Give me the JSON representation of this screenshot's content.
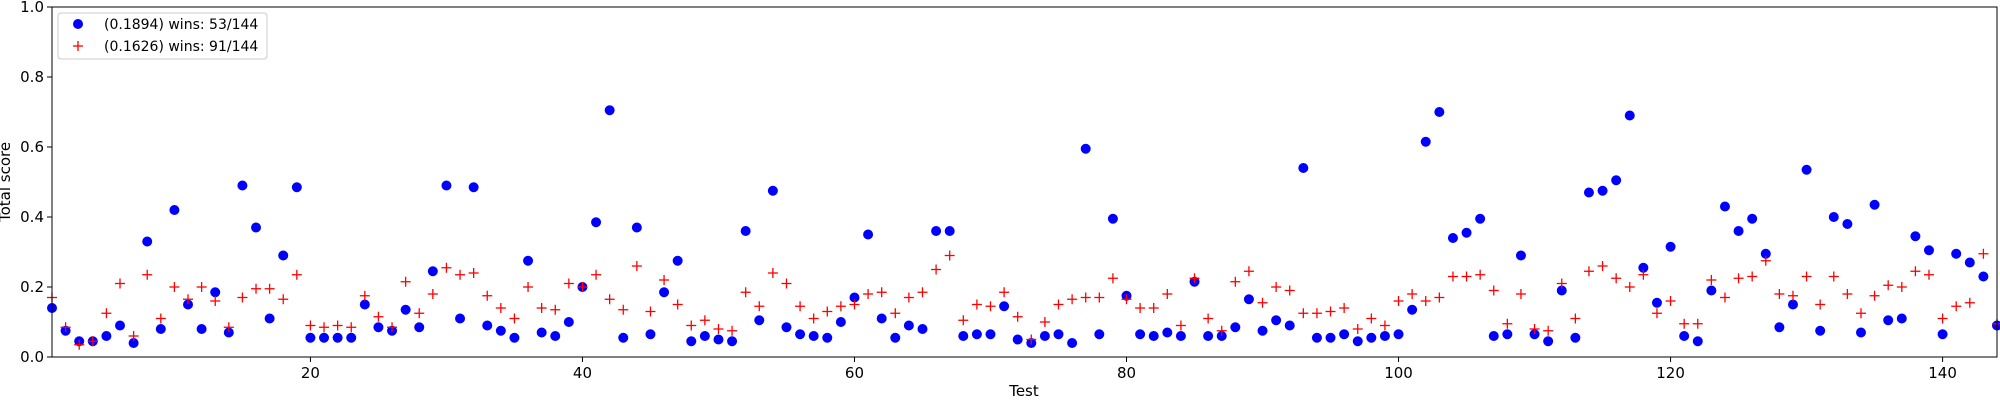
{
  "chart_data": {
    "type": "scatter",
    "title": "",
    "xlabel": "Test",
    "ylabel": "Total score",
    "xlim": [
      1,
      144
    ],
    "ylim": [
      0,
      1.0
    ],
    "xticks": [
      20,
      40,
      60,
      80,
      100,
      120,
      140
    ],
    "yticks": [
      0.0,
      0.2,
      0.4,
      0.6,
      0.8,
      1.0
    ],
    "ytick_labels": [
      "0.0",
      "0.2",
      "0.4",
      "0.6",
      "0.8",
      "1.0"
    ],
    "grid": false,
    "legend_position": "top-left",
    "x": [
      1,
      2,
      3,
      4,
      5,
      6,
      7,
      8,
      9,
      10,
      11,
      12,
      13,
      14,
      15,
      16,
      17,
      18,
      19,
      20,
      21,
      22,
      23,
      24,
      25,
      26,
      27,
      28,
      29,
      30,
      31,
      32,
      33,
      34,
      35,
      36,
      37,
      38,
      39,
      40,
      41,
      42,
      43,
      44,
      45,
      46,
      47,
      48,
      49,
      50,
      51,
      52,
      53,
      54,
      55,
      56,
      57,
      58,
      59,
      60,
      61,
      62,
      63,
      64,
      65,
      66,
      67,
      68,
      69,
      70,
      71,
      72,
      73,
      74,
      75,
      76,
      77,
      78,
      79,
      80,
      81,
      82,
      83,
      84,
      85,
      86,
      87,
      88,
      89,
      90,
      91,
      92,
      93,
      94,
      95,
      96,
      97,
      98,
      99,
      100,
      101,
      102,
      103,
      104,
      105,
      106,
      107,
      108,
      109,
      110,
      111,
      112,
      113,
      114,
      115,
      116,
      117,
      118,
      119,
      120,
      121,
      122,
      123,
      124,
      125,
      126,
      127,
      128,
      129,
      130,
      131,
      132,
      133,
      134,
      135,
      136,
      137,
      138,
      139,
      140,
      141,
      142,
      143,
      144
    ],
    "series": [
      {
        "name": "(0.1894) wins: 53/144",
        "color": "#0000ff",
        "marker": "circle",
        "values": [
          0.14,
          0.075,
          0.045,
          0.045,
          0.06,
          0.09,
          0.04,
          0.33,
          0.08,
          0.42,
          0.15,
          0.08,
          0.185,
          0.07,
          0.49,
          0.37,
          0.11,
          0.29,
          0.485,
          0.055,
          0.055,
          0.055,
          0.055,
          0.15,
          0.085,
          0.075,
          0.135,
          0.085,
          0.245,
          0.49,
          0.11,
          0.485,
          0.09,
          0.075,
          0.055,
          0.275,
          0.07,
          0.06,
          0.1,
          0.2,
          0.385,
          0.705,
          0.055,
          0.37,
          0.065,
          0.185,
          0.275,
          0.045,
          0.06,
          0.05,
          0.045,
          0.36,
          0.105,
          0.475,
          0.085,
          0.065,
          0.06,
          0.055,
          0.1,
          0.17,
          0.35,
          0.11,
          0.055,
          0.09,
          0.08,
          0.36,
          0.36,
          0.06,
          0.065,
          0.065,
          0.145,
          0.05,
          0.04,
          0.06,
          0.065,
          0.04,
          0.595,
          0.065,
          0.395,
          0.175,
          0.065,
          0.06,
          0.07,
          0.06,
          0.215,
          0.06,
          0.06,
          0.085,
          0.165,
          0.075,
          0.105,
          0.09,
          0.54,
          0.055,
          0.055,
          0.065,
          0.045,
          0.055,
          0.06,
          0.065,
          0.135,
          0.615,
          0.7,
          0.34,
          0.355,
          0.395,
          0.06,
          0.065,
          0.29,
          0.065,
          0.045,
          0.19,
          0.055,
          0.47,
          0.475,
          0.505,
          0.69,
          0.255,
          0.155,
          0.315,
          0.06,
          0.045,
          0.19,
          0.43,
          0.36,
          0.395,
          0.295,
          0.085,
          0.15,
          0.535,
          0.075,
          0.4,
          0.38,
          0.07,
          0.435,
          0.105,
          0.11,
          0.345,
          0.305,
          0.065,
          0.295,
          0.27,
          0.23,
          0.09
        ]
      },
      {
        "name": "(0.1626) wins: 91/144",
        "color": "#ff0000",
        "marker": "plus",
        "values": [
          0.17,
          0.085,
          0.035,
          0.045,
          0.125,
          0.21,
          0.06,
          0.235,
          0.11,
          0.2,
          0.165,
          0.2,
          0.16,
          0.085,
          0.17,
          0.195,
          0.195,
          0.165,
          0.235,
          0.09,
          0.085,
          0.09,
          0.085,
          0.175,
          0.115,
          0.085,
          0.215,
          0.125,
          0.18,
          0.255,
          0.235,
          0.24,
          0.175,
          0.14,
          0.11,
          0.2,
          0.14,
          0.135,
          0.21,
          0.2,
          0.235,
          0.165,
          0.135,
          0.26,
          0.13,
          0.22,
          0.15,
          0.09,
          0.105,
          0.08,
          0.075,
          0.185,
          0.145,
          0.24,
          0.21,
          0.145,
          0.11,
          0.13,
          0.145,
          0.15,
          0.18,
          0.185,
          0.125,
          0.17,
          0.185,
          0.25,
          0.29,
          0.105,
          0.15,
          0.145,
          0.185,
          0.115,
          0.05,
          0.1,
          0.15,
          0.165,
          0.17,
          0.17,
          0.225,
          0.165,
          0.14,
          0.14,
          0.18,
          0.09,
          0.225,
          0.11,
          0.075,
          0.215,
          0.245,
          0.155,
          0.2,
          0.19,
          0.125,
          0.125,
          0.13,
          0.14,
          0.08,
          0.11,
          0.09,
          0.16,
          0.18,
          0.16,
          0.17,
          0.23,
          0.23,
          0.235,
          0.19,
          0.095,
          0.18,
          0.08,
          0.075,
          0.21,
          0.11,
          0.245,
          0.26,
          0.225,
          0.2,
          0.235,
          0.125,
          0.16,
          0.095,
          0.095,
          0.22,
          0.17,
          0.225,
          0.23,
          0.275,
          0.18,
          0.175,
          0.23,
          0.15,
          0.23,
          0.18,
          0.125,
          0.175,
          0.205,
          0.2,
          0.245,
          0.235,
          0.11,
          0.145,
          0.155,
          0.295,
          0.095
        ]
      }
    ]
  }
}
